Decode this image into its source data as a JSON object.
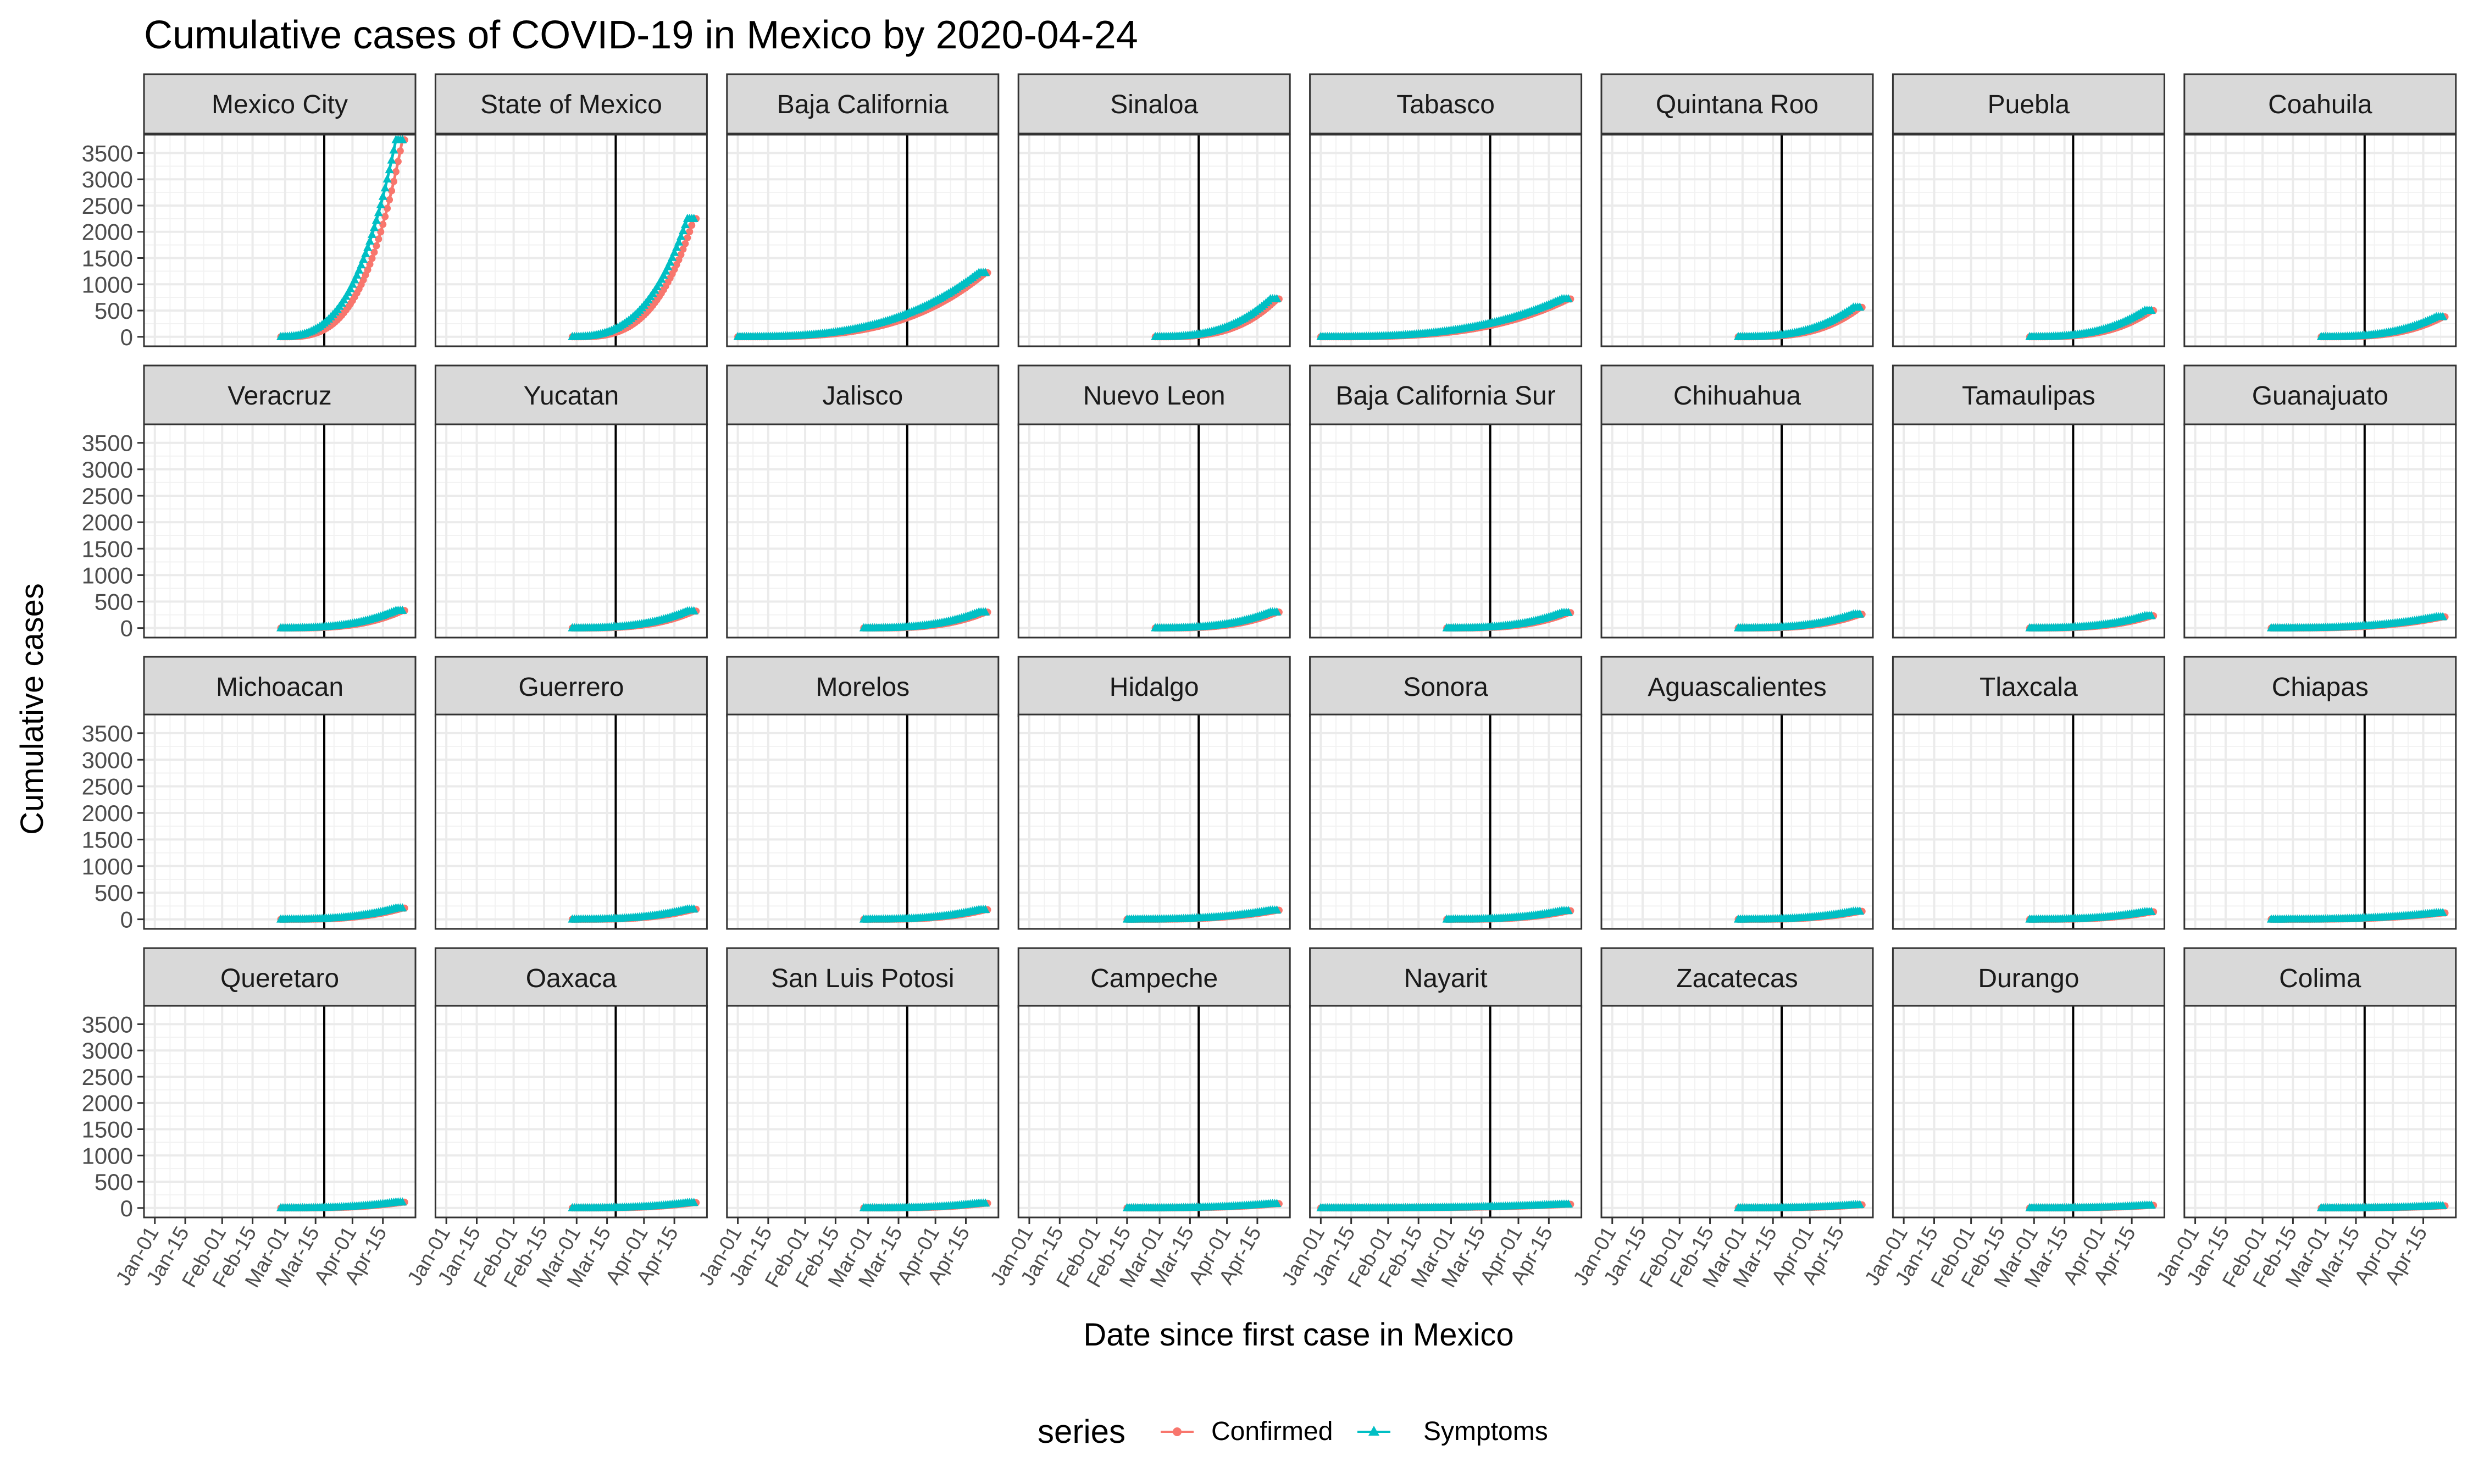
{
  "chart_data": {
    "type": "line",
    "title": "Cumulative cases of COVID-19 in Mexico by 2020-04-24",
    "xlabel": "Date since first case in Mexico",
    "ylabel": "Cumulative cases",
    "legend": {
      "title": "series",
      "placement": "bottom",
      "items": [
        {
          "name": "Confirmed",
          "color": "#F8766D",
          "shape": "circle"
        },
        {
          "name": "Symptoms",
          "color": "#00BFC4",
          "shape": "triangle"
        }
      ]
    },
    "x_tick_labels": [
      "Jan-01",
      "Jan-15",
      "Feb-01",
      "Feb-15",
      "Mar-01",
      "Mar-15",
      "Apr-01",
      "Apr-15"
    ],
    "x_tick_dates": [
      "2020-01-01",
      "2020-01-15",
      "2020-02-01",
      "2020-02-15",
      "2020-03-01",
      "2020-03-15",
      "2020-04-01",
      "2020-04-15"
    ],
    "xlim": [
      "2019-12-27",
      "2020-04-30"
    ],
    "y_ticks": [
      0,
      500,
      1000,
      1500,
      2000,
      2500,
      3000,
      3500
    ],
    "ylim": [
      -180,
      3850
    ],
    "reference_line_date": "2020-03-19",
    "grid": true,
    "facets": [
      {
        "name": "Mexico City",
        "start": "2020-02-28",
        "final": 3750
      },
      {
        "name": "State of Mexico",
        "start": "2020-02-28",
        "final": 2250
      },
      {
        "name": "Baja California",
        "start": "2020-01-01",
        "final": 1220
      },
      {
        "name": "Sinaloa",
        "start": "2020-02-28",
        "final": 720
      },
      {
        "name": "Tabasco",
        "start": "2020-01-01",
        "final": 720
      },
      {
        "name": "Quintana Roo",
        "start": "2020-02-28",
        "final": 560
      },
      {
        "name": "Puebla",
        "start": "2020-02-28",
        "final": 500
      },
      {
        "name": "Coahuila",
        "start": "2020-02-28",
        "final": 380
      },
      {
        "name": "Veracruz",
        "start": "2020-02-28",
        "final": 330
      },
      {
        "name": "Yucatan",
        "start": "2020-02-28",
        "final": 320
      },
      {
        "name": "Jalisco",
        "start": "2020-02-28",
        "final": 300
      },
      {
        "name": "Nuevo Leon",
        "start": "2020-02-28",
        "final": 300
      },
      {
        "name": "Baja California Sur",
        "start": "2020-02-28",
        "final": 290
      },
      {
        "name": "Chihuahua",
        "start": "2020-02-28",
        "final": 260
      },
      {
        "name": "Tamaulipas",
        "start": "2020-02-28",
        "final": 230
      },
      {
        "name": "Guanajuato",
        "start": "2020-02-05",
        "final": 210
      },
      {
        "name": "Michoacan",
        "start": "2020-02-28",
        "final": 210
      },
      {
        "name": "Guerrero",
        "start": "2020-02-28",
        "final": 190
      },
      {
        "name": "Morelos",
        "start": "2020-02-28",
        "final": 180
      },
      {
        "name": "Hidalgo",
        "start": "2020-02-15",
        "final": 170
      },
      {
        "name": "Sonora",
        "start": "2020-02-28",
        "final": 160
      },
      {
        "name": "Aguascalientes",
        "start": "2020-02-28",
        "final": 150
      },
      {
        "name": "Tlaxcala",
        "start": "2020-02-28",
        "final": 140
      },
      {
        "name": "Chiapas",
        "start": "2020-02-05",
        "final": 120
      },
      {
        "name": "Queretaro",
        "start": "2020-02-28",
        "final": 110
      },
      {
        "name": "Oaxaca",
        "start": "2020-02-28",
        "final": 100
      },
      {
        "name": "San Luis Potosi",
        "start": "2020-02-28",
        "final": 90
      },
      {
        "name": "Campeche",
        "start": "2020-02-15",
        "final": 80
      },
      {
        "name": "Nayarit",
        "start": "2020-01-01",
        "final": 70
      },
      {
        "name": "Zacatecas",
        "start": "2020-02-28",
        "final": 60
      },
      {
        "name": "Durango",
        "start": "2020-02-28",
        "final": 50
      },
      {
        "name": "Colima",
        "start": "2020-02-28",
        "final": 40
      }
    ]
  }
}
